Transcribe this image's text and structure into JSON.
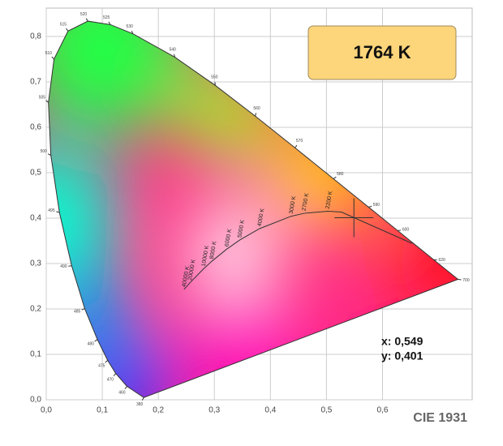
{
  "chart_data": {
    "type": "line",
    "xlim": [
      0,
      0.76
    ],
    "ylim": [
      0,
      0.8625
    ],
    "xticks": [
      {
        "value": 0,
        "label": "0,0"
      },
      {
        "value": 0.1,
        "label": "0,1"
      },
      {
        "value": 0.2,
        "label": "0,2"
      },
      {
        "value": 0.3,
        "label": "0,3"
      },
      {
        "value": 0.4,
        "label": "0,4"
      },
      {
        "value": 0.5,
        "label": "0,5"
      },
      {
        "value": 0.6,
        "label": "0,6"
      }
    ],
    "yticks": [
      {
        "value": 0,
        "label": "0,0"
      },
      {
        "value": 0.1,
        "label": "0,1"
      },
      {
        "value": 0.2,
        "label": "0,2"
      },
      {
        "value": 0.3,
        "label": "0,3"
      },
      {
        "value": 0.4,
        "label": "0,4"
      },
      {
        "value": 0.5,
        "label": "0,5"
      },
      {
        "value": 0.6,
        "label": "0,6"
      },
      {
        "value": 0.7,
        "label": "0,7"
      },
      {
        "value": 0.8,
        "label": "0,8"
      }
    ],
    "grid": true,
    "series": [
      {
        "color": "#333333",
        "labels": [
          "380",
          "460",
          "470",
          "475",
          "480",
          "485",
          "490",
          "495",
          "500",
          "505",
          "510",
          "515",
          "520",
          "525",
          "530",
          "540",
          "550",
          "560",
          "570",
          "580",
          "590",
          "600",
          "620",
          "700"
        ],
        "x": [
          0.1741,
          0.144,
          0.1241,
          0.1096,
          0.0913,
          0.0687,
          0.0454,
          0.0235,
          0.0082,
          0.0039,
          0.0139,
          0.0389,
          0.0743,
          0.1142,
          0.1547,
          0.2296,
          0.3016,
          0.3731,
          0.4441,
          0.5125,
          0.5752,
          0.627,
          0.6915,
          0.7347
        ],
        "y": [
          0.005,
          0.0297,
          0.0578,
          0.0868,
          0.1327,
          0.2007,
          0.295,
          0.4127,
          0.5384,
          0.6548,
          0.7502,
          0.812,
          0.8338,
          0.8262,
          0.8059,
          0.7543,
          0.6923,
          0.6245,
          0.5547,
          0.4866,
          0.4242,
          0.3725,
          0.3083,
          0.2653
        ]
      },
      {
        "color": "#333333",
        "labels": [
          null,
          null,
          "2200 K",
          "2700 K",
          "3000 K",
          "4000 K",
          "5000 K",
          "6000 K",
          "8000 K",
          "10000 K",
          "20000 K",
          "40000 K"
        ],
        "x": [
          0.6528,
          0.5267,
          0.502,
          0.4599,
          0.4369,
          0.3805,
          0.3451,
          0.3221,
          0.2952,
          0.2807,
          0.2565,
          0.2458
        ],
        "y": [
          0.3444,
          0.4133,
          0.4152,
          0.4106,
          0.4041,
          0.3768,
          0.3516,
          0.3318,
          0.3048,
          0.2884,
          0.2577,
          0.2429
        ]
      }
    ],
    "point": {
      "x": 0.549,
      "y": 0.401,
      "x_label": "x: 0,549",
      "y_label": "y: 0,401",
      "temperature": 1764,
      "temperature_label": "1764 K"
    },
    "caption": "CIE 1931"
  }
}
